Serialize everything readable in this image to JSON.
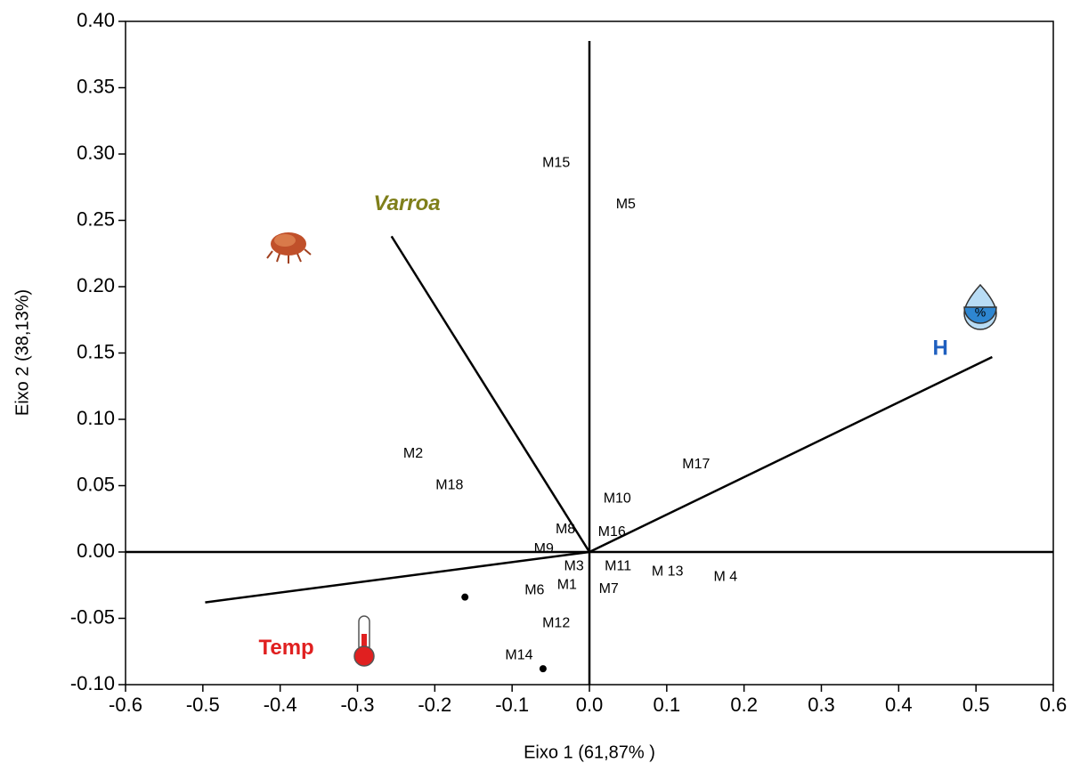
{
  "chart_data": {
    "type": "biplot",
    "x_label": "Eixo 1 (61,87% )",
    "y_label": "Eixo 2 (38,13%)",
    "xlim": [
      -0.6,
      0.6
    ],
    "xticks": [
      -0.6,
      -0.5,
      -0.4,
      -0.3,
      -0.2,
      -0.1,
      {
        "value": 0,
        "label": "0.0"
      },
      0.1,
      0.2,
      0.3,
      0.4,
      0.5,
      0.6
    ],
    "ylim": [
      -0.1,
      0.4
    ],
    "yticks": [
      {
        "value": -0.1,
        "label": "-0.10"
      },
      -0.05,
      {
        "value": 0,
        "label": "0.00"
      },
      0.05,
      {
        "value": 0.1,
        "label": "0.10"
      },
      0.15,
      {
        "value": 0.2,
        "label": "0.20"
      },
      0.25,
      {
        "value": 0.3,
        "label": "0.30"
      },
      0.35,
      {
        "value": 0.4,
        "label": "0.40"
      }
    ],
    "points": {
      "labels": [
        "M15",
        "M5",
        "M2",
        "M18",
        "M17",
        "M10",
        "M8",
        "M16",
        "M9",
        "M3",
        "M11",
        "M 13",
        "M 4",
        "M6",
        "M1",
        "M7",
        "M12",
        "M14"
      ],
      "x": [
        -0.043,
        0.047,
        -0.228,
        -0.181,
        0.138,
        0.036,
        -0.031,
        0.029,
        -0.059,
        -0.02,
        0.037,
        0.101,
        0.176,
        -0.071,
        -0.029,
        0.025,
        -0.043,
        -0.091
      ],
      "y": [
        0.293,
        0.262,
        0.074,
        0.05,
        0.066,
        0.04,
        0.017,
        0.015,
        0.002,
        -0.011,
        -0.011,
        -0.015,
        -0.019,
        -0.029,
        -0.025,
        -0.028,
        -0.054,
        -0.078
      ]
    },
    "markers": {
      "x": [
        -0.161,
        -0.06
      ],
      "y": [
        -0.034,
        -0.088
      ]
    },
    "vectors": [
      {
        "name": "Varroa",
        "x": -0.256,
        "y": 0.238,
        "color": "#7f7f1a",
        "label_at": [
          -0.236,
          0.262
        ]
      },
      {
        "name": "H",
        "x": 0.521,
        "y": 0.147,
        "color": "#1f5fbf",
        "label_at": [
          0.454,
          0.153
        ]
      },
      {
        "name": "Temp",
        "x": -0.497,
        "y": -0.038,
        "color": "#e02020",
        "label_at": [
          -0.392,
          -0.073
        ]
      }
    ]
  }
}
